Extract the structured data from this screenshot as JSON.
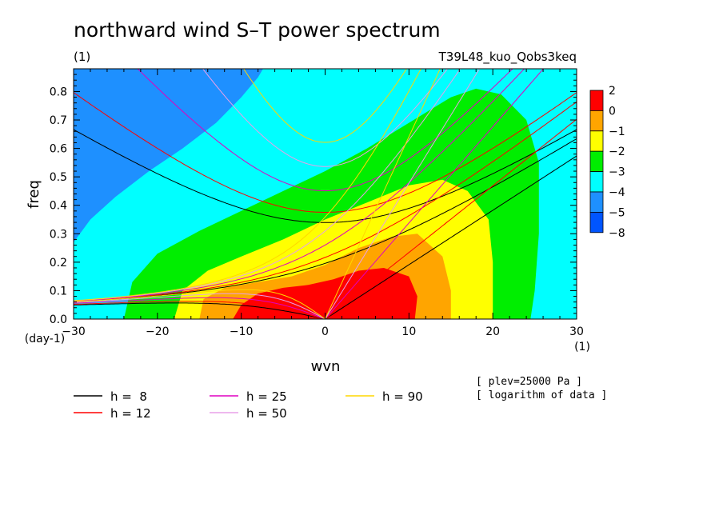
{
  "chart_data": {
    "type": "heatmap",
    "title": "northward wind S–T power spectrum",
    "subtitle_left": "(1)",
    "subtitle_right": "T39L48_kuo_Qobs3keq",
    "xlabel": "wvn",
    "ylabel": "freq",
    "x_unit": "(1)",
    "y_unit": "(day-1)",
    "xlim": [
      -30,
      30
    ],
    "ylim": [
      0,
      0.88
    ],
    "xticks": [
      "−30",
      "−20",
      "−10",
      "0",
      "10",
      "20",
      "30"
    ],
    "xtick_values": [
      -30,
      -20,
      -10,
      0,
      10,
      20,
      30
    ],
    "yticks": [
      "0.0",
      "0.1",
      "0.2",
      "0.3",
      "0.4",
      "0.5",
      "0.6",
      "0.7",
      "0.8"
    ],
    "ytick_values": [
      0,
      0.1,
      0.2,
      0.3,
      0.4,
      0.5,
      0.6,
      0.7,
      0.8
    ],
    "colorbar": {
      "labels": [
        "2",
        "0",
        "−1",
        "−2",
        "−3",
        "−4",
        "−5",
        "−8"
      ],
      "colors_top_to_bottom": [
        "#ff0000",
        "#ffa500",
        "#ffff00",
        "#00ee00",
        "#00ffff",
        "#1e90ff",
        "#0055ff"
      ]
    },
    "level_colors": {
      "lt_minus5": "#0055ff",
      "minus5_minus4": "#1e90ff",
      "minus4_minus3": "#00ffff",
      "minus3_minus2": "#00ee00",
      "minus2_minus1": "#ffff00",
      "minus1_0": "#ffa500",
      "gt_0": "#ff0000"
    },
    "dispersion_curves": [
      {
        "label": "h =  8",
        "h": 8,
        "color": "#000000"
      },
      {
        "label": "h = 12",
        "h": 12,
        "color": "#ff0000"
      },
      {
        "label": "h = 25",
        "h": 25,
        "color": "#e000c0"
      },
      {
        "label": "h = 50",
        "h": 50,
        "color": "#e8a0e8"
      },
      {
        "label": "h = 90",
        "h": 90,
        "color": "#ffd700"
      }
    ],
    "notes": [
      "[ plev=25000 Pa ]",
      "[ logarithm of data ]"
    ]
  }
}
